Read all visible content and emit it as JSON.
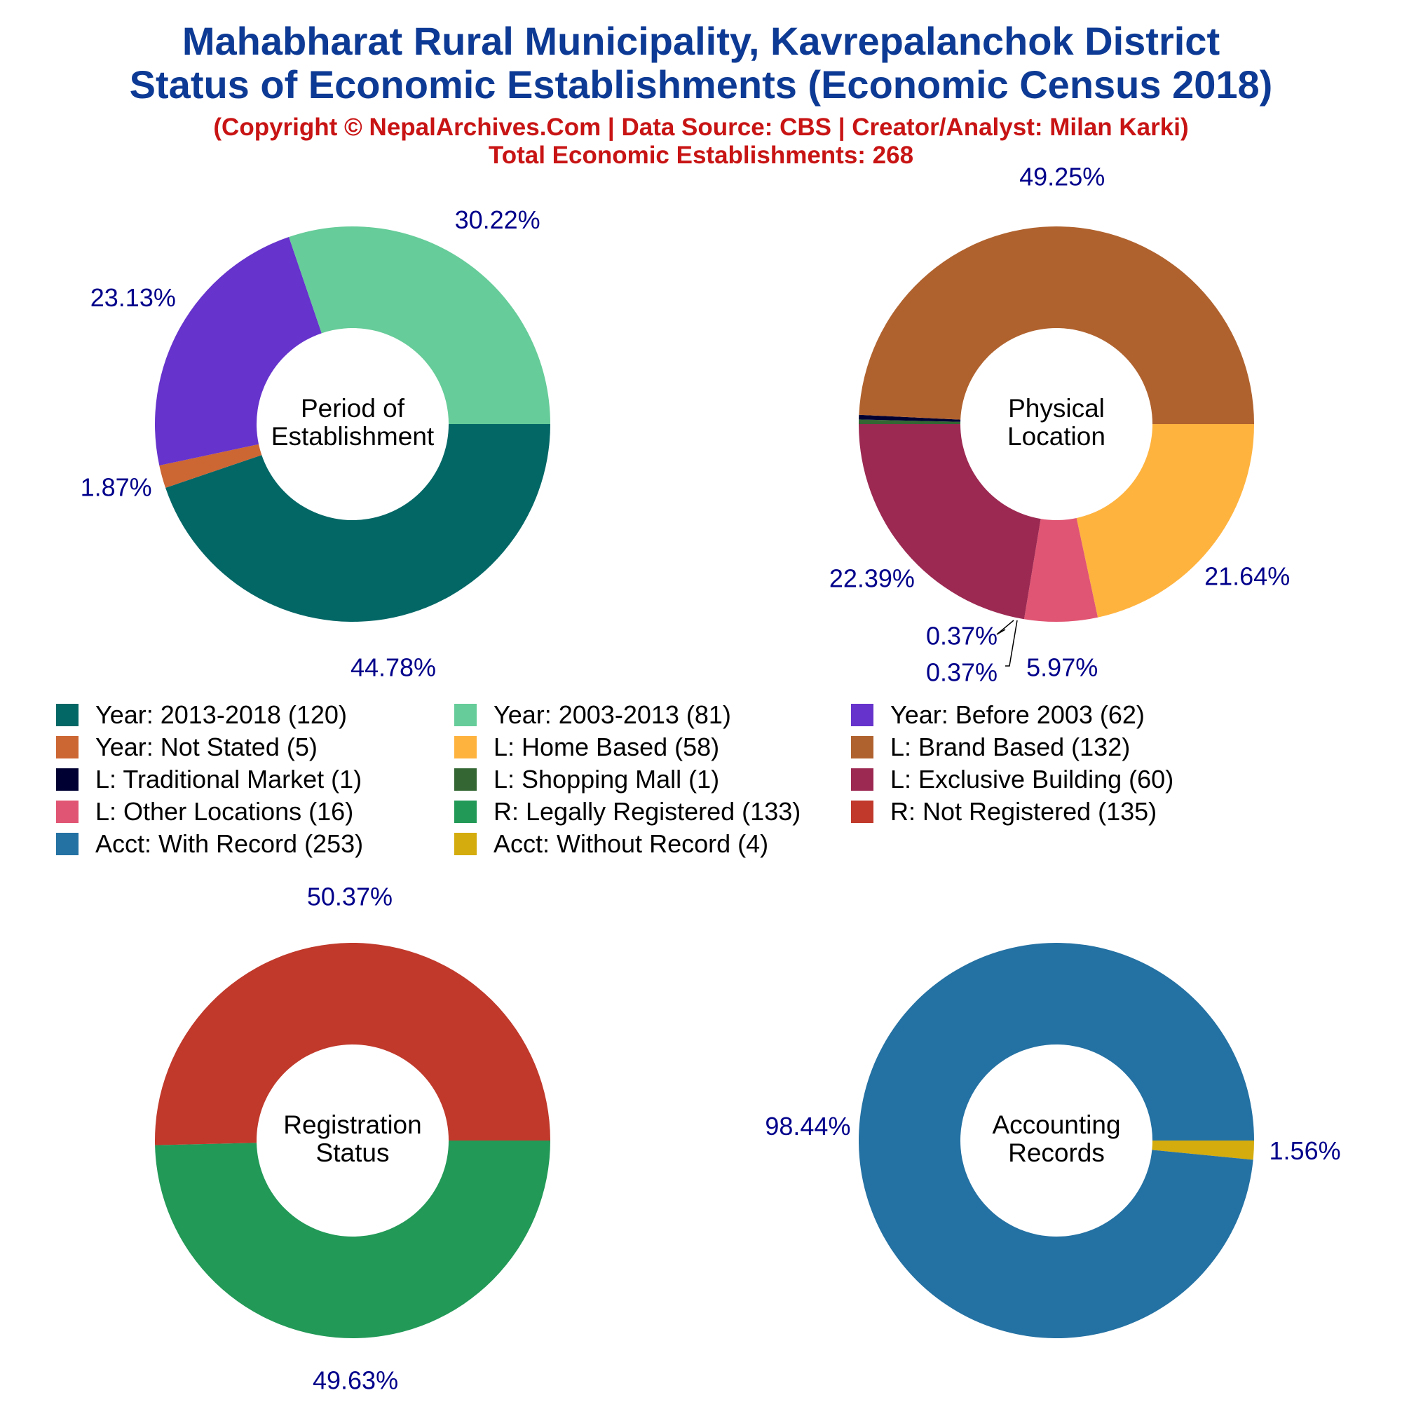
{
  "header": {
    "title_line1": "Mahabharat Rural Municipality, Kavrepalanchok District",
    "title_line2": "Status of Economic Establishments (Economic Census 2018)",
    "copyright": "(Copyright © NepalArchives.Com | Data Source: CBS | Creator/Analyst: Milan Karki)",
    "total": "Total Economic Establishments: 268"
  },
  "chart_data": [
    {
      "type": "pie",
      "center_label": [
        "Period of",
        "Establishment"
      ],
      "slices": [
        {
          "category": "Year: 2013-2018",
          "value": 120,
          "percent_label": "44.78%",
          "color": "#036766"
        },
        {
          "category": "Year: Not Stated",
          "value": 5,
          "percent_label": "1.87%",
          "color": "#cc6633"
        },
        {
          "category": "Year: Before 2003",
          "value": 62,
          "percent_label": "23.13%",
          "color": "#6633cc"
        },
        {
          "category": "Year: 2003-2013",
          "value": 81,
          "percent_label": "30.22%",
          "color": "#66cc99"
        }
      ]
    },
    {
      "type": "pie",
      "center_label": [
        "Physical",
        "Location"
      ],
      "slices": [
        {
          "category": "L: Home Based",
          "value": 58,
          "percent_label": "21.64%",
          "color": "#ffb33f"
        },
        {
          "category": "L: Other Locations",
          "value": 16,
          "percent_label": "5.97%",
          "color": "#e05573"
        },
        {
          "category": "L: Exclusive Building",
          "value": 60,
          "percent_label": "22.39%",
          "color": "#9c2952"
        },
        {
          "category": "L: Shopping Mall",
          "value": 1,
          "percent_label": "0.37%",
          "color": "#336633"
        },
        {
          "category": "L: Traditional Market",
          "value": 1,
          "percent_label": "0.37%",
          "color": "#000033"
        },
        {
          "category": "L: Brand Based",
          "value": 132,
          "percent_label": "49.25%",
          "color": "#b0622e"
        }
      ]
    },
    {
      "type": "pie",
      "center_label": [
        "Registration",
        "Status"
      ],
      "slices": [
        {
          "category": "R: Legally Registered",
          "value": 133,
          "percent_label": "49.63%",
          "color": "#229957"
        },
        {
          "category": "R: Not Registered",
          "value": 135,
          "percent_label": "50.37%",
          "color": "#c0392b"
        }
      ]
    },
    {
      "type": "pie",
      "center_label": [
        "Accounting",
        "Records"
      ],
      "slices": [
        {
          "category": "Acct: Without Record",
          "value": 4,
          "percent_label": "1.56%",
          "color": "#d4ac0d"
        },
        {
          "category": "Acct: With Record",
          "value": 253,
          "percent_label": "98.44%",
          "color": "#2471a3"
        }
      ]
    }
  ],
  "legend": [
    {
      "label": "Year: 2013-2018 (120)",
      "color": "#036766"
    },
    {
      "label": "Year: 2003-2013 (81)",
      "color": "#66cc99"
    },
    {
      "label": "Year: Before 2003 (62)",
      "color": "#6633cc"
    },
    {
      "label": "Year: Not Stated (5)",
      "color": "#cc6633"
    },
    {
      "label": "L: Home Based (58)",
      "color": "#ffb33f"
    },
    {
      "label": "L: Brand Based (132)",
      "color": "#b0622e"
    },
    {
      "label": "L: Traditional Market (1)",
      "color": "#000033"
    },
    {
      "label": "L: Shopping Mall (1)",
      "color": "#336633"
    },
    {
      "label": "L: Exclusive Building (60)",
      "color": "#9c2952"
    },
    {
      "label": "L: Other Locations (16)",
      "color": "#e05573"
    },
    {
      "label": "R: Legally Registered (133)",
      "color": "#229957"
    },
    {
      "label": "R: Not Registered (135)",
      "color": "#c0392b"
    },
    {
      "label": "Acct: With Record (253)",
      "color": "#2471a3"
    },
    {
      "label": "Acct: Without Record (4)",
      "color": "#d4ac0d"
    }
  ],
  "colors": {
    "title": "#0d3a94",
    "subtitle": "#c81414",
    "percent_label": "#00008b"
  }
}
